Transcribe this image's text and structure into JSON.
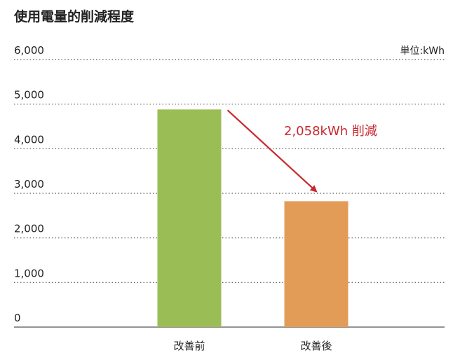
{
  "chart_data": {
    "type": "bar",
    "title": "使用電量的削減程度",
    "unit_label": "単位:kWh",
    "categories": [
      "改善前",
      "改善後"
    ],
    "values": [
      4880,
      2822
    ],
    "colors": [
      "#9bbd55",
      "#e39c58"
    ],
    "ylim": [
      0,
      6000
    ],
    "yticks": [
      0,
      {
        "value": 1000,
        "label": "1,000"
      },
      {
        "value": 2000,
        "label": "2,000"
      },
      {
        "value": 3000,
        "label": "3,000"
      },
      {
        "value": 4000,
        "label": "4,000"
      },
      {
        "value": 5000,
        "label": "5,000"
      },
      {
        "value": 6000,
        "label": "6,000"
      }
    ],
    "grid": true,
    "annotation": {
      "text": "2,058kWh 削減",
      "color": "#c8282e"
    }
  }
}
